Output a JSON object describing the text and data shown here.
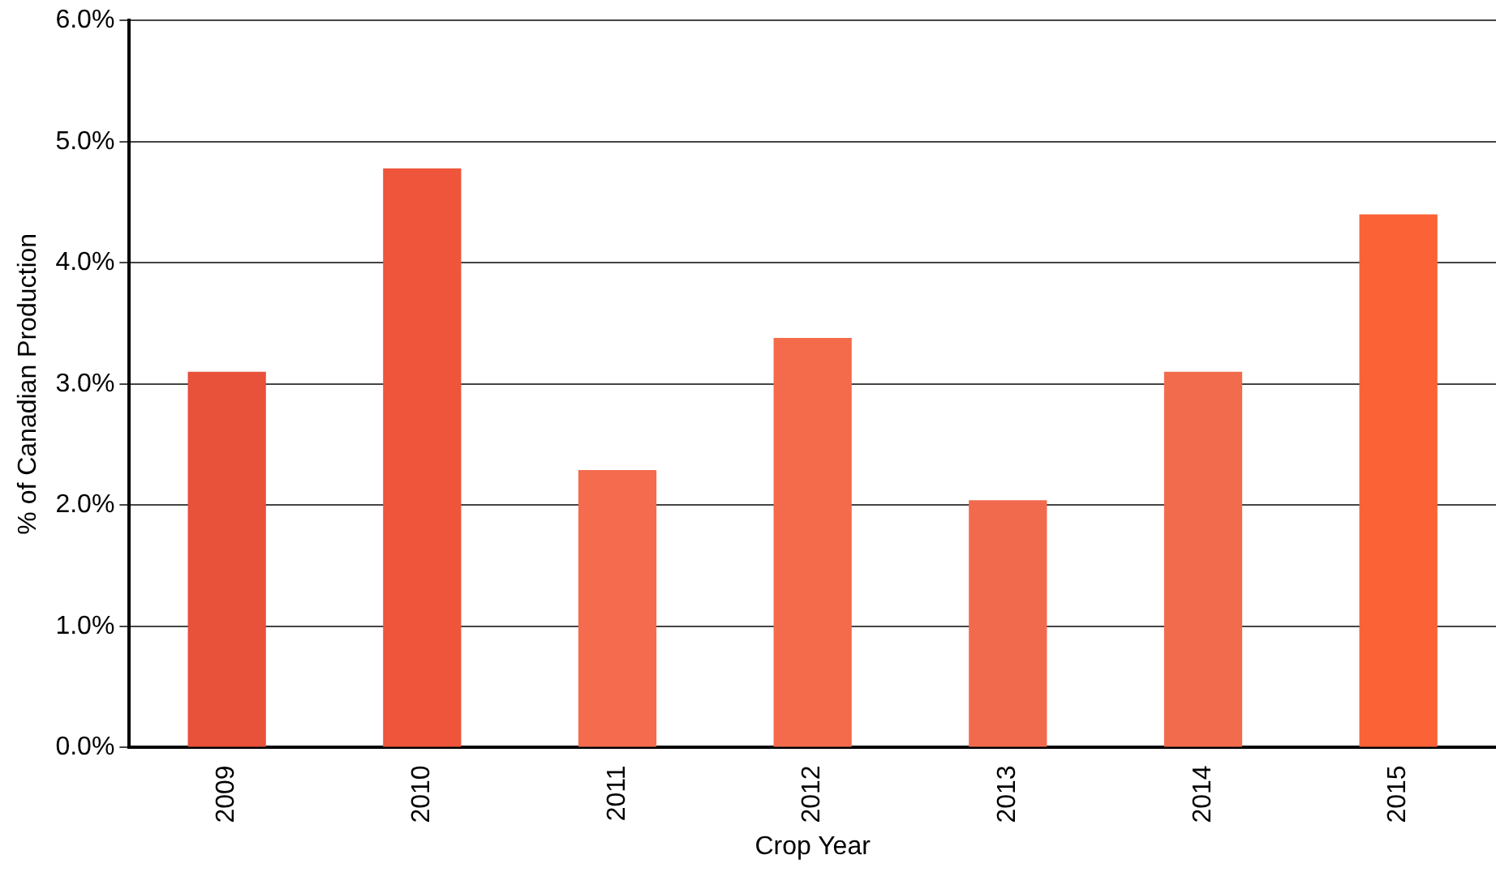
{
  "chart_data": {
    "type": "bar",
    "xlabel": "Crop Year",
    "ylabel": "% of Canadian Production",
    "categories": [
      "2009",
      "2010",
      "2011",
      "2012",
      "2013",
      "2014",
      "2015"
    ],
    "values": [
      3.1,
      4.78,
      2.29,
      3.38,
      2.04,
      3.1,
      4.4
    ],
    "colors": [
      "#e8513a",
      "#ee553a",
      "#f46b4e",
      "#f46b4c",
      "#f26a4e",
      "#f26b4c",
      "#fb6236"
    ],
    "ylim": [
      0,
      6
    ],
    "yticks": [
      {
        "value": 0,
        "label": "0.0%"
      },
      {
        "value": 1,
        "label": "1.0%"
      },
      {
        "value": 2,
        "label": "2.0%"
      },
      {
        "value": 3,
        "label": "3.0%"
      },
      {
        "value": 4,
        "label": "4.0%"
      },
      {
        "value": 5,
        "label": "5.0%"
      },
      {
        "value": 6,
        "label": "6.0%"
      }
    ],
    "grid": "y",
    "legend": false
  }
}
